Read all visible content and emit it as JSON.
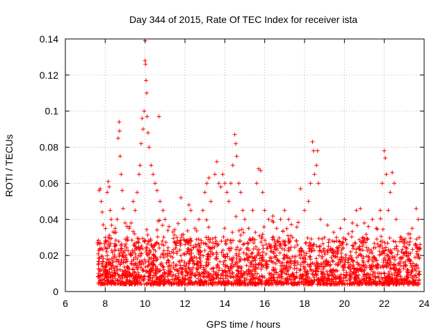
{
  "chart_data": {
    "type": "scatter",
    "title": "Day 344 of 2015, Rate Of TEC Index for receiver ista",
    "xlabel": "GPS time / hours",
    "ylabel": "ROTI / TECUs",
    "xlim": [
      6,
      24
    ],
    "ylim": [
      0,
      0.14
    ],
    "x_ticks": [
      6,
      8,
      10,
      12,
      14,
      16,
      18,
      20,
      22,
      24
    ],
    "x_tick_labels": [
      "6",
      "8",
      "10",
      "12",
      "14",
      "16",
      "18",
      "20",
      "22",
      "24"
    ],
    "y_ticks": [
      0,
      0.02,
      0.04,
      0.06,
      0.08,
      0.1,
      0.12,
      0.14
    ],
    "y_tick_labels": [
      "0",
      "0.02",
      "0.04",
      "0.06",
      "0.08",
      "0.1",
      "0.12",
      "0.14"
    ],
    "grid": true,
    "marker": "plus",
    "series": [
      {
        "name": "ROTI",
        "color": "#ff0000",
        "x_range": [
          7.6,
          23.8
        ],
        "points": [
          [
            7.7,
            0.056
          ],
          [
            7.75,
            0.057
          ],
          [
            7.8,
            0.05
          ],
          [
            7.85,
            0.044
          ],
          [
            7.9,
            0.037
          ],
          [
            8.0,
            0.03
          ],
          [
            8.1,
            0.055
          ],
          [
            8.15,
            0.061
          ],
          [
            8.2,
            0.058
          ],
          [
            8.25,
            0.045
          ],
          [
            8.3,
            0.04
          ],
          [
            8.4,
            0.033
          ],
          [
            8.5,
            0.035
          ],
          [
            8.6,
            0.04
          ],
          [
            8.65,
            0.085
          ],
          [
            8.7,
            0.094
          ],
          [
            8.72,
            0.089
          ],
          [
            8.75,
            0.075
          ],
          [
            8.8,
            0.065
          ],
          [
            8.85,
            0.056
          ],
          [
            8.9,
            0.046
          ],
          [
            9.0,
            0.038
          ],
          [
            9.1,
            0.03
          ],
          [
            9.2,
            0.035
          ],
          [
            9.3,
            0.038
          ],
          [
            9.4,
            0.05
          ],
          [
            9.5,
            0.045
          ],
          [
            9.6,
            0.055
          ],
          [
            9.7,
            0.065
          ],
          [
            9.75,
            0.07
          ],
          [
            9.8,
            0.082
          ],
          [
            9.85,
            0.096
          ],
          [
            9.9,
            0.09
          ],
          [
            9.95,
            0.1
          ],
          [
            10.0,
            0.139
          ],
          [
            10.0,
            0.128
          ],
          [
            10.02,
            0.126
          ],
          [
            10.05,
            0.117
          ],
          [
            10.08,
            0.11
          ],
          [
            10.1,
            0.097
          ],
          [
            10.15,
            0.088
          ],
          [
            10.2,
            0.08
          ],
          [
            10.3,
            0.07
          ],
          [
            10.4,
            0.065
          ],
          [
            10.5,
            0.06
          ],
          [
            10.6,
            0.056
          ],
          [
            10.7,
            0.097
          ],
          [
            10.75,
            0.05
          ],
          [
            10.9,
            0.045
          ],
          [
            11.0,
            0.04
          ],
          [
            11.2,
            0.036
          ],
          [
            11.4,
            0.033
          ],
          [
            11.6,
            0.03
          ],
          [
            11.8,
            0.052
          ],
          [
            12.0,
            0.04
          ],
          [
            12.2,
            0.048
          ],
          [
            12.3,
            0.045
          ],
          [
            12.5,
            0.035
          ],
          [
            12.7,
            0.04
          ],
          [
            12.9,
            0.045
          ],
          [
            13.0,
            0.055
          ],
          [
            13.1,
            0.06
          ],
          [
            13.2,
            0.063
          ],
          [
            13.3,
            0.05
          ],
          [
            13.5,
            0.065
          ],
          [
            13.6,
            0.072
          ],
          [
            13.7,
            0.06
          ],
          [
            13.8,
            0.058
          ],
          [
            13.9,
            0.065
          ],
          [
            14.0,
            0.06
          ],
          [
            14.1,
            0.055
          ],
          [
            14.2,
            0.05
          ],
          [
            14.3,
            0.06
          ],
          [
            14.4,
            0.07
          ],
          [
            14.5,
            0.087
          ],
          [
            14.55,
            0.082
          ],
          [
            14.6,
            0.075
          ],
          [
            14.7,
            0.06
          ],
          [
            14.8,
            0.055
          ],
          [
            14.9,
            0.045
          ],
          [
            15.0,
            0.04
          ],
          [
            15.2,
            0.035
          ],
          [
            15.4,
            0.045
          ],
          [
            15.6,
            0.06
          ],
          [
            15.7,
            0.068
          ],
          [
            15.8,
            0.067
          ],
          [
            15.9,
            0.055
          ],
          [
            16.0,
            0.045
          ],
          [
            16.2,
            0.04
          ],
          [
            16.4,
            0.03
          ],
          [
            16.6,
            0.035
          ],
          [
            16.8,
            0.04
          ],
          [
            17.0,
            0.045
          ],
          [
            17.2,
            0.04
          ],
          [
            17.4,
            0.03
          ],
          [
            17.6,
            0.028
          ],
          [
            17.8,
            0.057
          ],
          [
            18.0,
            0.045
          ],
          [
            18.2,
            0.05
          ],
          [
            18.3,
            0.06
          ],
          [
            18.4,
            0.083
          ],
          [
            18.45,
            0.078
          ],
          [
            18.5,
            0.065
          ],
          [
            18.6,
            0.07
          ],
          [
            18.65,
            0.078
          ],
          [
            18.7,
            0.06
          ],
          [
            18.8,
            0.04
          ],
          [
            19.0,
            0.03
          ],
          [
            19.2,
            0.025
          ],
          [
            19.4,
            0.028
          ],
          [
            19.6,
            0.03
          ],
          [
            19.8,
            0.035
          ],
          [
            20.0,
            0.04
          ],
          [
            20.2,
            0.032
          ],
          [
            20.4,
            0.038
          ],
          [
            20.6,
            0.045
          ],
          [
            20.8,
            0.046
          ],
          [
            21.0,
            0.038
          ],
          [
            21.2,
            0.036
          ],
          [
            21.4,
            0.04
          ],
          [
            21.6,
            0.035
          ],
          [
            21.8,
            0.045
          ],
          [
            21.9,
            0.06
          ],
          [
            22.0,
            0.078
          ],
          [
            22.05,
            0.074
          ],
          [
            22.1,
            0.065
          ],
          [
            22.2,
            0.045
          ],
          [
            22.3,
            0.055
          ],
          [
            22.4,
            0.066
          ],
          [
            22.5,
            0.06
          ],
          [
            22.6,
            0.04
          ],
          [
            22.8,
            0.03
          ],
          [
            23.0,
            0.028
          ],
          [
            23.2,
            0.032
          ],
          [
            23.4,
            0.035
          ],
          [
            23.6,
            0.046
          ],
          [
            23.7,
            0.04
          ],
          [
            23.75,
            0.03
          ]
        ]
      }
    ]
  }
}
